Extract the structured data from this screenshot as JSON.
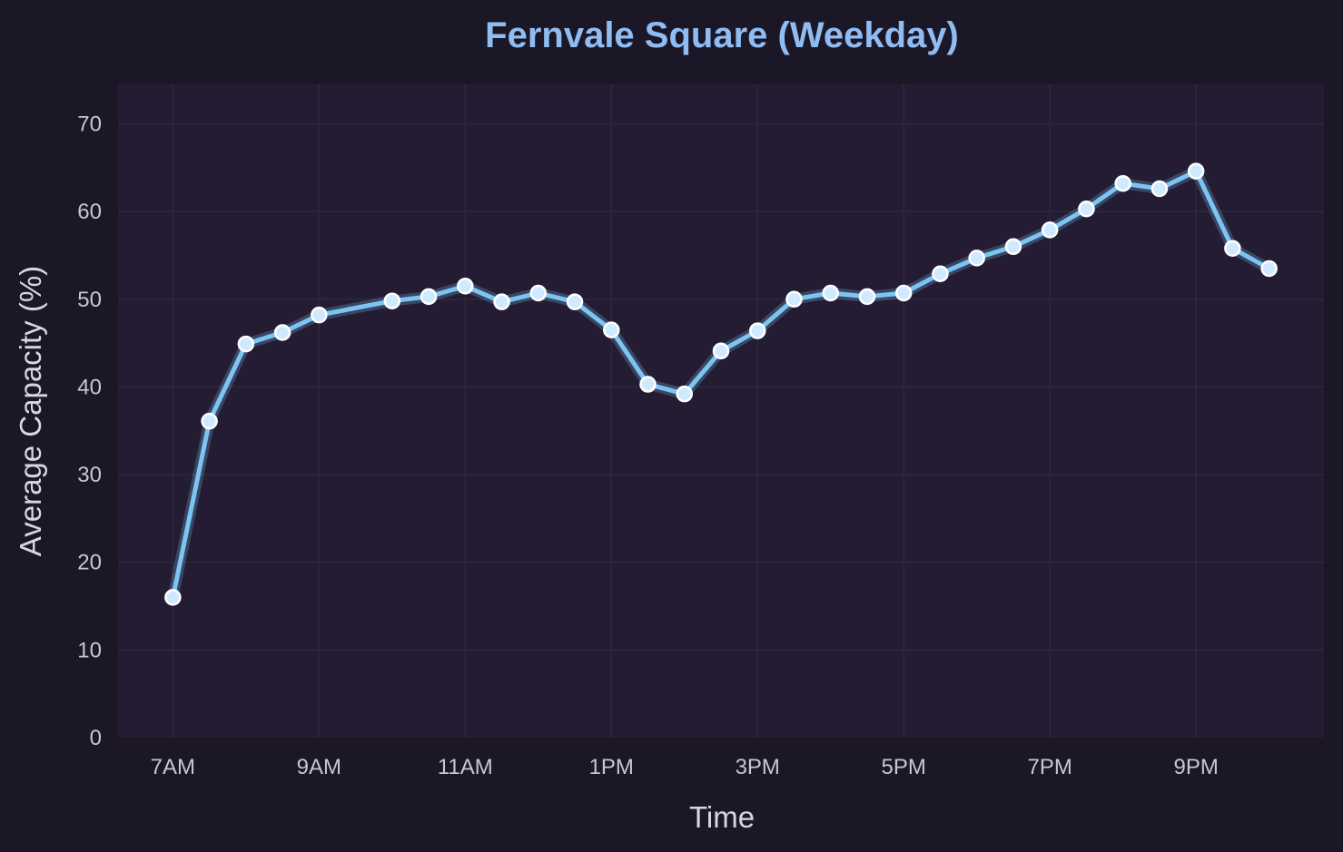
{
  "chart_data": {
    "type": "line",
    "title": "Fernvale Square (Weekday)",
    "xlabel": "Time",
    "ylabel": "Average Capacity (%)",
    "x_ticks": [
      {
        "hour": 7,
        "label": "7AM"
      },
      {
        "hour": 9,
        "label": "9AM"
      },
      {
        "hour": 11,
        "label": "11AM"
      },
      {
        "hour": 13,
        "label": "1PM"
      },
      {
        "hour": 15,
        "label": "3PM"
      },
      {
        "hour": 17,
        "label": "5PM"
      },
      {
        "hour": 19,
        "label": "7PM"
      },
      {
        "hour": 21,
        "label": "9PM"
      }
    ],
    "y_ticks": [
      0,
      10,
      20,
      30,
      40,
      50,
      60,
      70
    ],
    "xlim": [
      6.25,
      22.75
    ],
    "ylim": [
      0,
      74.5
    ],
    "grid": true,
    "legend": "none",
    "colors": {
      "background": "#1b1727",
      "plot_background": "#231c33",
      "line": "#7cc4f2",
      "marker_fill": "#cfeaff",
      "marker_edge": "#ffffff",
      "grid": "#2e2840",
      "title": "#8fbcf3"
    },
    "series": [
      {
        "x": [
          7,
          7.5,
          8,
          8.5,
          9,
          10,
          10.5,
          11,
          11.5,
          12,
          12.5,
          13,
          13.5,
          14,
          14.5,
          15,
          15.5,
          16,
          16.5,
          17,
          17.5,
          18,
          18.5,
          19,
          19.5,
          20,
          20.5,
          21,
          21.5,
          22
        ],
        "y": [
          16.0,
          36.1,
          44.9,
          46.2,
          48.2,
          49.8,
          50.3,
          51.5,
          49.7,
          50.7,
          49.7,
          46.5,
          40.3,
          39.2,
          44.1,
          46.4,
          50.0,
          50.7,
          50.3,
          50.7,
          52.9,
          54.7,
          56.0,
          57.9,
          60.3,
          63.2,
          62.6,
          64.6,
          55.8,
          53.5
        ]
      }
    ]
  }
}
